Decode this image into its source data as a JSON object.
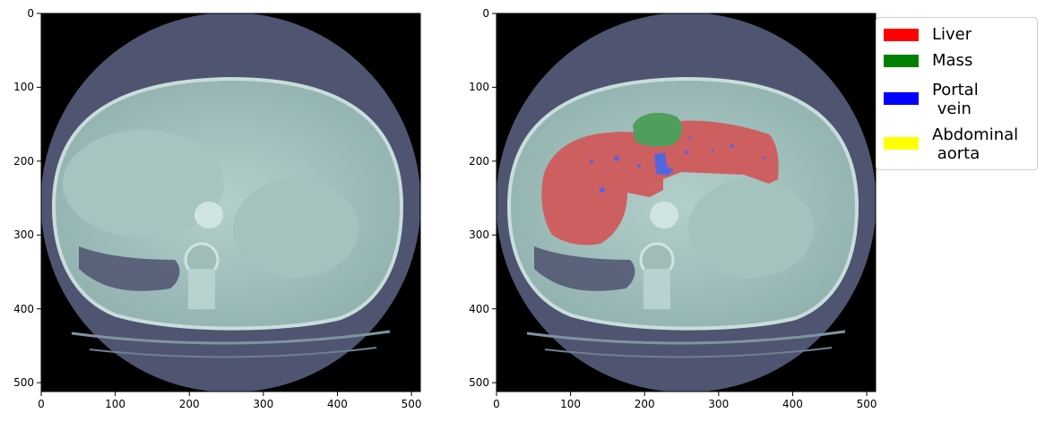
{
  "panels": [
    {
      "id": "left-panel",
      "x_ticks": [
        "0",
        "100",
        "200",
        "300",
        "400",
        "500"
      ],
      "y_ticks": [
        "0",
        "100",
        "200",
        "300",
        "400",
        "500"
      ]
    },
    {
      "id": "right-panel",
      "x_ticks": [
        "0",
        "100",
        "200",
        "300",
        "400",
        "500"
      ],
      "y_ticks": [
        "0",
        "100",
        "200",
        "300",
        "400",
        "500"
      ]
    }
  ],
  "legend": {
    "items": [
      {
        "label": "Liver",
        "color": "#ff0000"
      },
      {
        "label": "Mass",
        "color": "#008000"
      },
      {
        "label": "Portal\n vein",
        "color": "#0000ff"
      },
      {
        "label": "Abdominal\n aorta",
        "color": "#ffff00"
      }
    ]
  },
  "colors": {
    "background_disc": "#4f5470",
    "tissue": "#a8c6c2",
    "liver_overlay": "#d05a5c",
    "mass_overlay": "#4f9e5e",
    "vein_overlay": "#5566dd"
  }
}
